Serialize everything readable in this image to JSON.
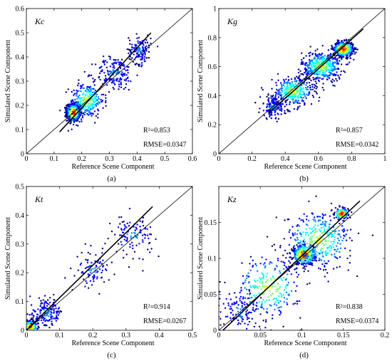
{
  "figure": {
    "colormap": [
      "#00008f",
      "#0000ff",
      "#0080ff",
      "#00ffff",
      "#80ff80",
      "#ffff00",
      "#ff8000",
      "#ff0000",
      "#800000"
    ]
  },
  "chart_data": [
    {
      "type": "scatter",
      "panel_name": "Kc",
      "caption": "(a)",
      "xlabel": "Reference Scene Component",
      "ylabel": "Simulated Scene Component",
      "xlim": [
        0,
        0.6
      ],
      "ylim": [
        0,
        0.6
      ],
      "xticks": [
        "0",
        "0.1",
        "0.2",
        "0.3",
        "0.4",
        "0.5",
        "0.6"
      ],
      "yticks": [
        "0",
        "0.1",
        "0.2",
        "0.3",
        "0.4",
        "0.5",
        "0.6"
      ],
      "r2_text": "R²=0.853",
      "rmse_text": "RMSE=0.0347",
      "one_to_one_line": [
        [
          0,
          0
        ],
        [
          0.6,
          0.6
        ]
      ],
      "fit_line": [
        [
          0.12,
          0.09
        ],
        [
          0.45,
          0.5
        ]
      ],
      "clusters": [
        {
          "center": [
            0.17,
            0.17
          ],
          "spread": [
            0.012,
            0.018
          ],
          "count": 700,
          "density": "high"
        },
        {
          "center": [
            0.22,
            0.22
          ],
          "spread": [
            0.03,
            0.035
          ],
          "count": 260,
          "density": "medium"
        },
        {
          "center": [
            0.32,
            0.33
          ],
          "spread": [
            0.035,
            0.035
          ],
          "count": 160,
          "density": "low"
        },
        {
          "center": [
            0.41,
            0.43
          ],
          "spread": [
            0.02,
            0.03
          ],
          "count": 140,
          "density": "low"
        }
      ],
      "grid": false
    },
    {
      "type": "scatter",
      "panel_name": "Kg",
      "caption": "(b)",
      "xlabel": "Reference Scene Component",
      "ylabel": "Simulated Scene Component",
      "xlim": [
        0,
        1
      ],
      "ylim": [
        0,
        1
      ],
      "xticks": [
        "0",
        "0.2",
        "0.4",
        "0.6",
        "0.8",
        "1"
      ],
      "yticks": [
        "0",
        "0.2",
        "0.4",
        "0.6",
        "0.8",
        "1"
      ],
      "r2_text": "R²=0.857",
      "rmse_text": "RMSE=0.0342",
      "one_to_one_line": [
        [
          0,
          0
        ],
        [
          1,
          1
        ]
      ],
      "fit_line": [
        [
          0.3,
          0.28
        ],
        [
          0.87,
          0.86
        ]
      ],
      "clusters": [
        {
          "center": [
            0.75,
            0.72
          ],
          "spread": [
            0.03,
            0.025
          ],
          "count": 500,
          "density": "high"
        },
        {
          "center": [
            0.62,
            0.6
          ],
          "spread": [
            0.06,
            0.05
          ],
          "count": 450,
          "density": "medium"
        },
        {
          "center": [
            0.45,
            0.43
          ],
          "spread": [
            0.06,
            0.05
          ],
          "count": 350,
          "density": "medium"
        },
        {
          "center": [
            0.33,
            0.32
          ],
          "spread": [
            0.04,
            0.04
          ],
          "count": 150,
          "density": "low"
        }
      ],
      "grid": false
    },
    {
      "type": "scatter",
      "panel_name": "Kt",
      "caption": "(c)",
      "xlabel": "Reference Scene Component",
      "ylabel": "Simulated Scene Component",
      "xlim": [
        0,
        0.5
      ],
      "ylim": [
        0,
        0.5
      ],
      "xticks": [
        "0",
        "0.1",
        "0.2",
        "0.3",
        "0.4",
        "0.5"
      ],
      "yticks": [
        "0",
        "0.1",
        "0.2",
        "0.3",
        "0.4",
        "0.5"
      ],
      "r2_text": "R²=0.914",
      "rmse_text": "RMSE=0.0267",
      "one_to_one_line": [
        [
          0,
          0
        ],
        [
          0.5,
          0.5
        ]
      ],
      "fit_line": [
        [
          0,
          0
        ],
        [
          0.38,
          0.43
        ]
      ],
      "clusters": [
        {
          "center": [
            0.012,
            0.012
          ],
          "spread": [
            0.01,
            0.01
          ],
          "count": 300,
          "density": "high"
        },
        {
          "center": [
            0.06,
            0.06
          ],
          "spread": [
            0.025,
            0.025
          ],
          "count": 160,
          "density": "low"
        },
        {
          "center": [
            0.2,
            0.21
          ],
          "spread": [
            0.025,
            0.03
          ],
          "count": 90,
          "density": "low"
        },
        {
          "center": [
            0.32,
            0.33
          ],
          "spread": [
            0.03,
            0.035
          ],
          "count": 110,
          "density": "low"
        }
      ],
      "grid": false
    },
    {
      "type": "scatter",
      "panel_name": "Kz",
      "caption": "(d)",
      "xlabel": "Reference Scene Component",
      "ylabel": "Simulated Scene Component",
      "xlim": [
        0,
        0.2
      ],
      "ylim": [
        0,
        0.2
      ],
      "xticks": [
        "0",
        "0.05",
        "0.1",
        "0.15",
        "0.2"
      ],
      "yticks": [
        "0",
        "0.05",
        "0.1",
        "0.15"
      ],
      "r2_text": "R²=0.838",
      "rmse_text": "RMSE=0.0374",
      "one_to_one_line": [
        [
          0,
          0
        ],
        [
          0.2,
          0.2
        ]
      ],
      "fit_line": [
        [
          0.005,
          0
        ],
        [
          0.17,
          0.18
        ]
      ],
      "clusters": [
        {
          "center": [
            0.103,
            0.105
          ],
          "spread": [
            0.007,
            0.007
          ],
          "count": 450,
          "density": "high"
        },
        {
          "center": [
            0.148,
            0.162
          ],
          "spread": [
            0.004,
            0.004
          ],
          "count": 120,
          "density": "high"
        },
        {
          "center": [
            0.12,
            0.125
          ],
          "spread": [
            0.02,
            0.02
          ],
          "count": 350,
          "density": "medium"
        },
        {
          "center": [
            0.06,
            0.06
          ],
          "spread": [
            0.02,
            0.022
          ],
          "count": 260,
          "density": "medium"
        },
        {
          "center": [
            0.025,
            0.025
          ],
          "spread": [
            0.015,
            0.015
          ],
          "count": 120,
          "density": "low"
        }
      ],
      "grid": false
    }
  ]
}
